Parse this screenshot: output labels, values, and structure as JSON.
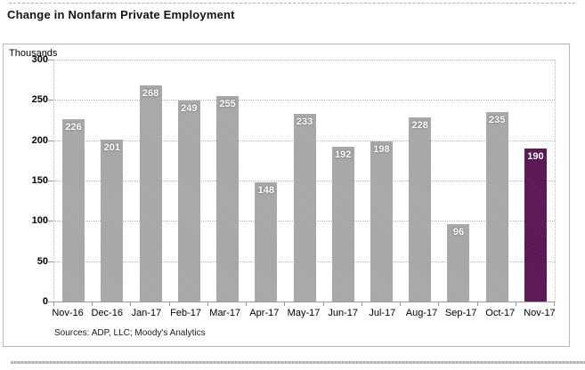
{
  "page": {
    "title": "Change in Nonfarm Private Employment",
    "source_note": "Sources: ADP, LLC; Moody's Analytics"
  },
  "chart_data": {
    "type": "bar",
    "title": "Change in Nonfarm Private Employment",
    "ylabel": "Thousands",
    "categories": [
      "Nov-16",
      "Dec-16",
      "Jan-17",
      "Feb-17",
      "Mar-17",
      "Apr-17",
      "May-17",
      "Jun-17",
      "Jul-17",
      "Aug-17",
      "Sep-17",
      "Oct-17",
      "Nov-17"
    ],
    "values": [
      226,
      201,
      268,
      249,
      255,
      148,
      233,
      192,
      198,
      228,
      96,
      235,
      190
    ],
    "highlight_index": 12,
    "ylim": [
      0,
      300
    ],
    "ytick_interval": 50,
    "grid": true,
    "legend": "none",
    "value_labels": "inside-top",
    "colors": {
      "bar": "#a9a8a8",
      "highlight_bar": "#560e52",
      "value_label": "#ffffff",
      "gridline": "#b8b8b8",
      "axis": "#9a9a9a"
    },
    "source_note": "Sources: ADP, LLC; Moody's Analytics"
  }
}
